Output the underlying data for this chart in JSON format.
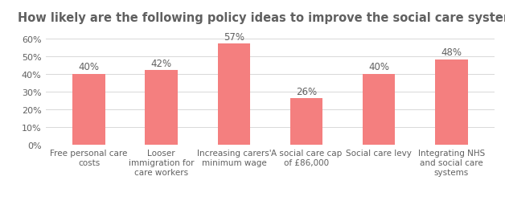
{
  "title": "How likely are the following policy ideas to improve the social care system?",
  "categories": [
    "Free personal care\ncosts",
    "Looser\nimmigration for\ncare workers",
    "Increasing carers'\nminimum wage",
    "A social care cap\nof £86,000",
    "Social care levy",
    "Integrating NHS\nand social care\nsystems"
  ],
  "values": [
    40,
    42,
    57,
    26,
    40,
    48
  ],
  "labels": [
    "40%",
    "42%",
    "57%",
    "26%",
    "40%",
    "48%"
  ],
  "bar_color": "#F47F7F",
  "background_color": "#ffffff",
  "ylim": [
    0,
    65
  ],
  "yticks": [
    0,
    10,
    20,
    30,
    40,
    50,
    60
  ],
  "ytick_labels": [
    "0%",
    "10%",
    "20%",
    "30%",
    "40%",
    "50%",
    "60%"
  ],
  "title_fontsize": 10.5,
  "label_fontsize": 8.5,
  "tick_fontsize": 8,
  "xtick_fontsize": 7.5,
  "bar_width": 0.45,
  "grid_color": "#d8d8d8",
  "text_color": "#606060"
}
